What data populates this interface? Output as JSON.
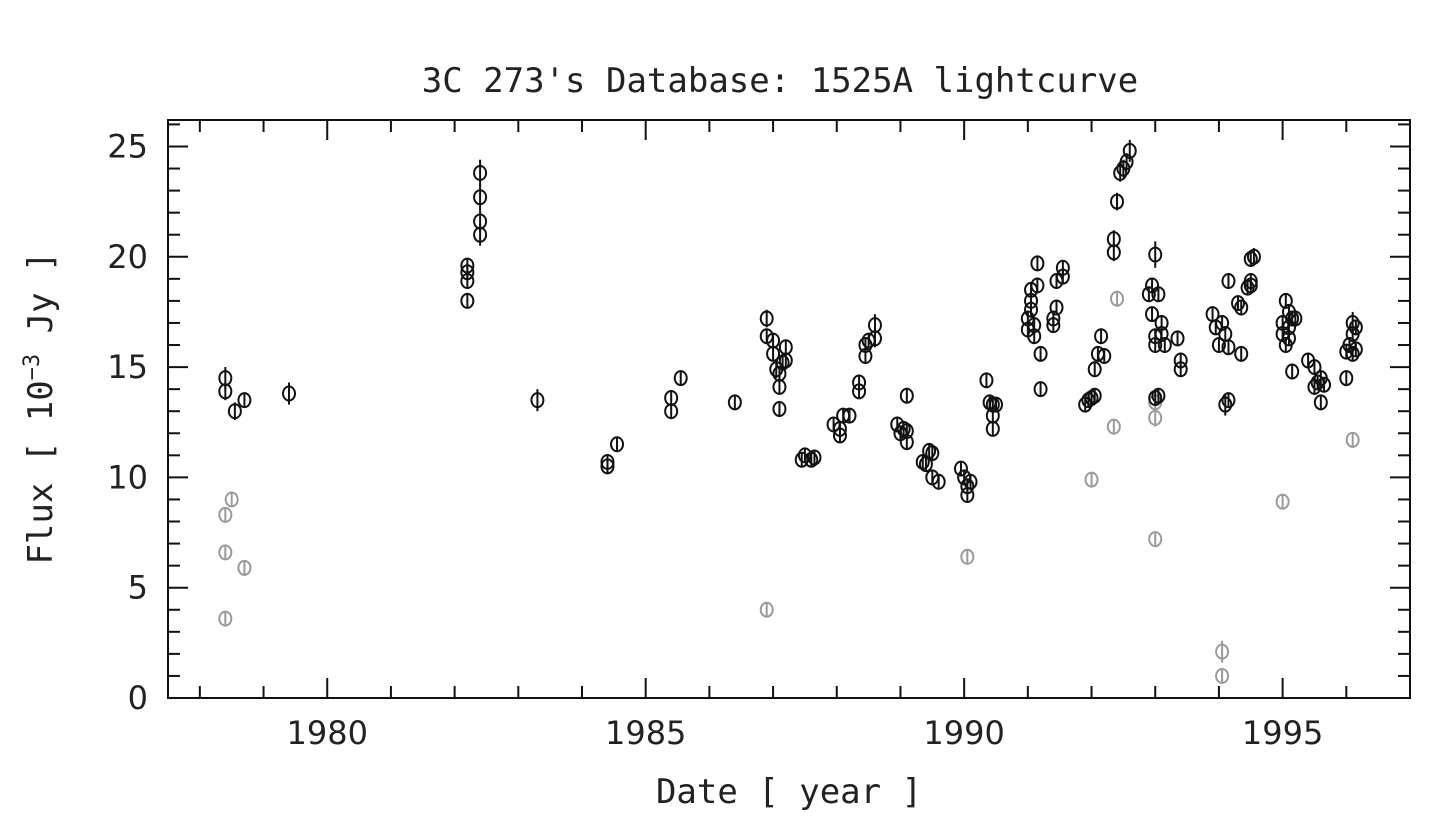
{
  "chart_data": {
    "type": "scatter",
    "title": "3C 273's Database: 1525A lightcurve",
    "xlabel": "Date [ year ]",
    "ylabel_prefix": "Flux [ 10",
    "ylabel_exp": "−3",
    "ylabel_suffix": " Jy ]",
    "xlim": [
      1977.5,
      1997.0
    ],
    "ylim": [
      0,
      26.2
    ],
    "x_ticks": [
      1980,
      1985,
      1990,
      1995
    ],
    "y_ticks": [
      0,
      5,
      10,
      15,
      20,
      25
    ],
    "x_minor_step": 1,
    "y_minor_step": 1,
    "grid": false,
    "colors": {
      "main": "#111111",
      "secondary": "#9a9a9a",
      "frame": "#111111"
    },
    "series": [
      {
        "points": [
          [
            1978.4,
            14.5,
            0.5
          ],
          [
            1978.4,
            13.9,
            0.4
          ],
          [
            1978.55,
            13.0,
            0.4
          ],
          [
            1978.7,
            13.5,
            0.3
          ],
          [
            1979.4,
            13.8,
            0.5
          ],
          [
            1982.2,
            18.0,
            0.3
          ],
          [
            1982.2,
            18.9,
            0.3
          ],
          [
            1982.2,
            19.3,
            0.3
          ],
          [
            1982.2,
            19.6,
            0.3
          ],
          [
            1982.4,
            21.0,
            0.5
          ],
          [
            1982.4,
            21.6,
            0.5
          ],
          [
            1982.4,
            22.7,
            0.6
          ],
          [
            1982.4,
            23.8,
            0.6
          ],
          [
            1983.3,
            13.5,
            0.5
          ],
          [
            1984.4,
            10.5,
            0.3
          ],
          [
            1984.4,
            10.7,
            0.3
          ],
          [
            1984.55,
            11.5,
            0.3
          ],
          [
            1985.4,
            13.0,
            0.3
          ],
          [
            1985.4,
            13.6,
            0.3
          ],
          [
            1985.55,
            14.5,
            0.3
          ],
          [
            1986.4,
            13.4,
            0.3
          ],
          [
            1986.9,
            17.2,
            0.4
          ],
          [
            1986.9,
            16.4,
            0.3
          ],
          [
            1987.0,
            16.2,
            0.3
          ],
          [
            1987.0,
            15.6,
            0.3
          ],
          [
            1987.05,
            14.9,
            0.4
          ],
          [
            1987.1,
            14.7,
            0.3
          ],
          [
            1987.1,
            14.1,
            0.3
          ],
          [
            1987.1,
            13.1,
            0.3
          ],
          [
            1987.2,
            15.3,
            0.3
          ],
          [
            1987.2,
            15.9,
            0.3
          ],
          [
            1987.15,
            15.2,
            0.3
          ],
          [
            1987.45,
            10.8,
            0.3
          ],
          [
            1987.5,
            11.0,
            0.3
          ],
          [
            1987.6,
            10.8,
            0.3
          ],
          [
            1987.65,
            10.9,
            0.3
          ],
          [
            1987.95,
            12.4,
            0.3
          ],
          [
            1988.05,
            11.9,
            0.3
          ],
          [
            1988.05,
            12.2,
            0.3
          ],
          [
            1988.1,
            12.8,
            0.3
          ],
          [
            1988.2,
            12.8,
            0.3
          ],
          [
            1988.35,
            13.9,
            0.3
          ],
          [
            1988.35,
            14.3,
            0.3
          ],
          [
            1988.45,
            15.5,
            0.3
          ],
          [
            1988.45,
            16.0,
            0.3
          ],
          [
            1988.5,
            16.2,
            0.3
          ],
          [
            1988.6,
            16.3,
            0.4
          ],
          [
            1988.6,
            16.9,
            0.5
          ],
          [
            1988.95,
            12.4,
            0.3
          ],
          [
            1989.0,
            12.0,
            0.3
          ],
          [
            1989.05,
            12.2,
            0.3
          ],
          [
            1989.1,
            12.1,
            0.3
          ],
          [
            1989.1,
            11.6,
            0.3
          ],
          [
            1989.1,
            13.7,
            0.3
          ],
          [
            1989.35,
            10.7,
            0.3
          ],
          [
            1989.4,
            10.6,
            0.3
          ],
          [
            1989.45,
            11.2,
            0.3
          ],
          [
            1989.5,
            11.1,
            0.3
          ],
          [
            1989.5,
            10.0,
            0.3
          ],
          [
            1989.6,
            9.8,
            0.3
          ],
          [
            1989.95,
            10.4,
            0.3
          ],
          [
            1990.0,
            10.0,
            0.3
          ],
          [
            1990.05,
            9.6,
            0.3
          ],
          [
            1990.05,
            9.2,
            0.3
          ],
          [
            1990.1,
            9.8,
            0.3
          ],
          [
            1990.35,
            14.4,
            0.3
          ],
          [
            1990.4,
            13.4,
            0.3
          ],
          [
            1990.45,
            13.3,
            0.3
          ],
          [
            1990.5,
            13.3,
            0.3
          ],
          [
            1990.45,
            12.8,
            0.3
          ],
          [
            1990.45,
            12.2,
            0.3
          ],
          [
            1991.0,
            16.7,
            0.3
          ],
          [
            1991.0,
            17.2,
            0.3
          ],
          [
            1991.05,
            17.6,
            0.3
          ],
          [
            1991.05,
            18.0,
            0.3
          ],
          [
            1991.05,
            18.5,
            0.3
          ],
          [
            1991.1,
            16.9,
            0.3
          ],
          [
            1991.1,
            16.4,
            0.3
          ],
          [
            1991.15,
            18.7,
            0.3
          ],
          [
            1991.15,
            19.7,
            0.3
          ],
          [
            1991.2,
            15.6,
            0.3
          ],
          [
            1991.2,
            14.0,
            0.3
          ],
          [
            1991.4,
            17.2,
            0.3
          ],
          [
            1991.4,
            16.9,
            0.3
          ],
          [
            1991.45,
            17.7,
            0.3
          ],
          [
            1991.45,
            18.9,
            0.3
          ],
          [
            1991.55,
            19.1,
            0.3
          ],
          [
            1991.55,
            19.5,
            0.3
          ],
          [
            1991.9,
            13.3,
            0.3
          ],
          [
            1991.95,
            13.5,
            0.3
          ],
          [
            1992.0,
            13.6,
            0.3
          ],
          [
            1992.05,
            13.7,
            0.3
          ],
          [
            1992.05,
            14.9,
            0.3
          ],
          [
            1992.1,
            15.6,
            0.3
          ],
          [
            1992.15,
            16.4,
            0.3
          ],
          [
            1992.2,
            15.5,
            0.3
          ],
          [
            1992.35,
            20.2,
            0.4
          ],
          [
            1992.35,
            20.8,
            0.4
          ],
          [
            1992.4,
            22.5,
            0.4
          ],
          [
            1992.45,
            23.8,
            0.4
          ],
          [
            1992.5,
            24.0,
            0.4
          ],
          [
            1992.55,
            24.3,
            0.4
          ],
          [
            1992.6,
            24.8,
            0.5
          ],
          [
            1992.9,
            18.3,
            0.3
          ],
          [
            1992.95,
            18.7,
            0.3
          ],
          [
            1992.95,
            17.4,
            0.3
          ],
          [
            1993.0,
            16.4,
            0.3
          ],
          [
            1993.0,
            16.0,
            0.3
          ],
          [
            1993.05,
            18.3,
            0.3
          ],
          [
            1993.0,
            20.1,
            0.6
          ],
          [
            1993.1,
            17.0,
            0.3
          ],
          [
            1993.1,
            16.5,
            0.3
          ],
          [
            1993.15,
            16.0,
            0.3
          ],
          [
            1993.0,
            13.6,
            0.3
          ],
          [
            1993.05,
            13.7,
            0.3
          ],
          [
            1993.35,
            16.3,
            0.3
          ],
          [
            1993.4,
            15.3,
            0.3
          ],
          [
            1993.4,
            14.9,
            0.3
          ],
          [
            1993.9,
            17.4,
            0.3
          ],
          [
            1993.95,
            16.8,
            0.3
          ],
          [
            1994.0,
            16.0,
            0.3
          ],
          [
            1994.05,
            17.0,
            0.3
          ],
          [
            1994.1,
            16.5,
            0.3
          ],
          [
            1994.15,
            15.9,
            0.3
          ],
          [
            1994.1,
            13.3,
            0.5
          ],
          [
            1994.15,
            13.5,
            0.3
          ],
          [
            1994.15,
            18.9,
            0.3
          ],
          [
            1994.3,
            17.9,
            0.3
          ],
          [
            1994.35,
            17.7,
            0.3
          ],
          [
            1994.35,
            15.6,
            0.3
          ],
          [
            1994.45,
            18.6,
            0.3
          ],
          [
            1994.5,
            18.9,
            0.3
          ],
          [
            1994.5,
            19.9,
            0.3
          ],
          [
            1994.55,
            20.0,
            0.4
          ],
          [
            1994.5,
            18.7,
            0.3
          ],
          [
            1995.0,
            17.0,
            0.3
          ],
          [
            1995.0,
            16.5,
            0.3
          ],
          [
            1995.05,
            18.0,
            0.3
          ],
          [
            1995.05,
            16.0,
            0.3
          ],
          [
            1995.1,
            17.5,
            0.3
          ],
          [
            1995.1,
            16.8,
            0.3
          ],
          [
            1995.1,
            16.3,
            0.3
          ],
          [
            1995.15,
            17.2,
            0.3
          ],
          [
            1995.2,
            17.2,
            0.3
          ],
          [
            1995.15,
            14.8,
            0.3
          ],
          [
            1995.4,
            15.3,
            0.3
          ],
          [
            1995.5,
            15.0,
            0.3
          ],
          [
            1995.5,
            14.1,
            0.3
          ],
          [
            1995.55,
            14.3,
            0.3
          ],
          [
            1995.6,
            13.4,
            0.3
          ],
          [
            1995.6,
            14.5,
            0.3
          ],
          [
            1995.65,
            14.2,
            0.3
          ],
          [
            1996.0,
            14.5,
            0.3
          ],
          [
            1996.0,
            15.7,
            0.3
          ],
          [
            1996.05,
            16.0,
            0.3
          ],
          [
            1996.1,
            16.5,
            0.3
          ],
          [
            1996.1,
            17.0,
            0.5
          ],
          [
            1996.15,
            16.8,
            0.3
          ],
          [
            1996.15,
            15.8,
            0.3
          ],
          [
            1996.1,
            15.6,
            0.3
          ]
        ]
      },
      {
        "points": [
          [
            1978.4,
            8.3,
            0.3
          ],
          [
            1978.5,
            9.0,
            0.3
          ],
          [
            1978.4,
            6.6,
            0.3
          ],
          [
            1978.7,
            5.9,
            0.3
          ],
          [
            1978.4,
            3.6,
            0.3
          ],
          [
            1986.9,
            4.0,
            0.3
          ],
          [
            1990.05,
            6.4,
            0.3
          ],
          [
            1992.0,
            9.9,
            0.3
          ],
          [
            1992.35,
            12.3,
            0.3
          ],
          [
            1992.4,
            18.1,
            0.3
          ],
          [
            1993.0,
            12.7,
            0.4
          ],
          [
            1993.0,
            13.4,
            0.3
          ],
          [
            1993.0,
            7.2,
            0.3
          ],
          [
            1994.05,
            2.1,
            0.5
          ],
          [
            1994.05,
            1.0,
            0.3
          ],
          [
            1995.0,
            8.9,
            0.3
          ],
          [
            1996.1,
            11.7,
            0.3
          ]
        ]
      }
    ]
  }
}
